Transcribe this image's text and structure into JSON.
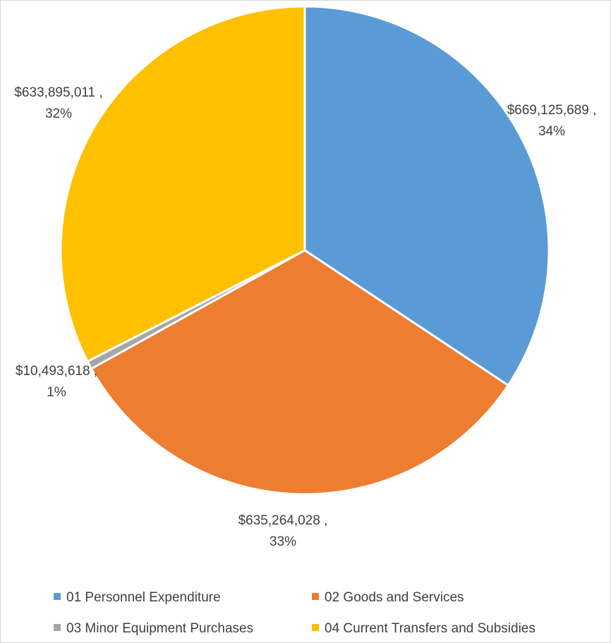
{
  "chart_data": {
    "type": "pie",
    "title": "",
    "slices": [
      {
        "name": "01 Personnel Expenditure",
        "value": 669125689,
        "value_label": "$669,125,689 ,",
        "percent_label": "34%",
        "color": "#5b9bd5"
      },
      {
        "name": "02 Goods and Services",
        "value": 635264028,
        "value_label": "$635,264,028 ,",
        "percent_label": "33%",
        "color": "#ed7d31"
      },
      {
        "name": "03 Minor Equipment Purchases",
        "value": 10493618,
        "value_label": "$10,493,618 ,",
        "percent_label": "1%",
        "color": "#a5a5a5"
      },
      {
        "name": "04 Current Transfers and Subsidies",
        "value": 633895011,
        "value_label": "$633,895,011 ,",
        "percent_label": "32%",
        "color": "#ffc000"
      }
    ],
    "legend_position": "bottom"
  }
}
